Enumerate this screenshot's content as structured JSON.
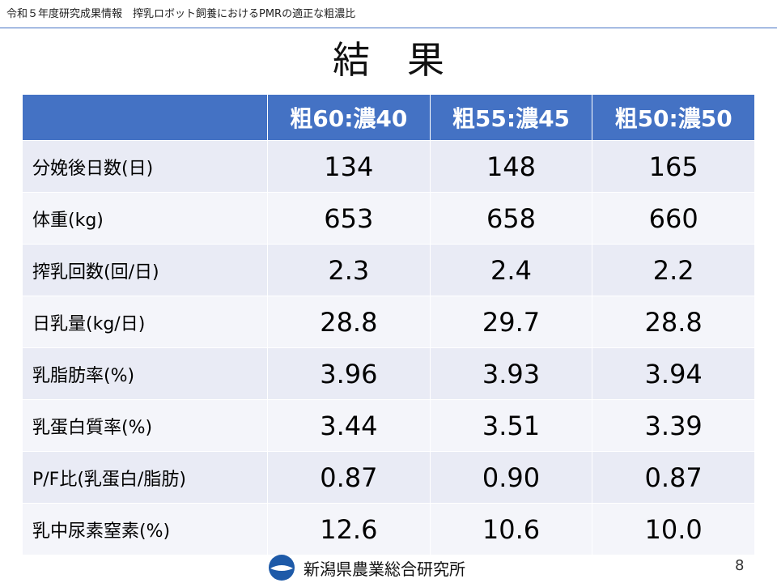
{
  "header": {
    "text": "令和５年度研究成果情報　搾乳ロボット飼養におけるPMRの適正な粗濃比"
  },
  "title": "結　果",
  "table": {
    "columns": [
      "粗60:濃40",
      "粗55:濃45",
      "粗50:濃50"
    ],
    "rows": [
      [
        "分娩後日数(日)",
        "134",
        "148",
        "165"
      ],
      [
        "体重(kg)",
        "653",
        "658",
        "660"
      ],
      [
        "搾乳回数(回/日)",
        "2.3",
        "2.4",
        "2.2"
      ],
      [
        "日乳量(kg/日)",
        "28.8",
        "29.7",
        "28.8"
      ],
      [
        "乳脂肪率(%)",
        "3.96",
        "3.93",
        "3.94"
      ],
      [
        "乳蛋白質率(%)",
        "3.44",
        "3.51",
        "3.39"
      ],
      [
        "P/F比(乳蛋白/脂肪)",
        "0.87",
        "0.90",
        "0.87"
      ],
      [
        "乳中尿素窒素(%)",
        "12.6",
        "10.6",
        "10.0"
      ]
    ]
  },
  "footer": {
    "organization": "新潟県農業総合研究所",
    "page": "8"
  }
}
